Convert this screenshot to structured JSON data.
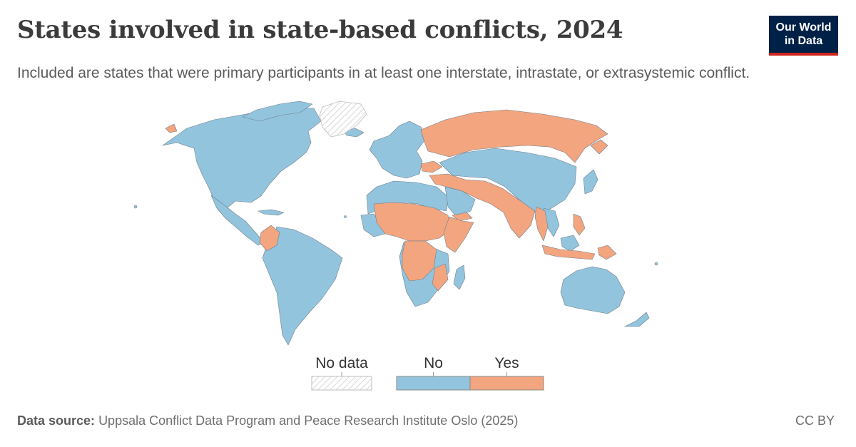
{
  "header": {
    "title": "States involved in state-based conflicts, 2024",
    "subtitle": "Included are states that were primary participants in at least one interstate, intrastate, or extrasystemic conflict."
  },
  "logo": {
    "line1": "Our World",
    "line2": "in Data"
  },
  "legend": {
    "no_data_label": "No data",
    "categories": [
      {
        "label": "No",
        "color": "#93c4de"
      },
      {
        "label": "Yes",
        "color": "#f3a57f"
      }
    ]
  },
  "map_data": {
    "type": "choropleth",
    "region": "World",
    "year": "2024",
    "colors": {
      "no": "#93c4de",
      "yes": "#f3a57f",
      "border": "#6f7f8a"
    },
    "states_yes": [
      "Russia",
      "Ukraine",
      "Israel",
      "Iran",
      "Syria",
      "Iraq",
      "Yemen",
      "Afghanistan",
      "Pakistan",
      "India",
      "Myanmar",
      "Thailand",
      "Philippines",
      "Indonesia",
      "Papua New Guinea",
      "Colombia",
      "Mali",
      "Burkina Faso",
      "Niger",
      "Nigeria",
      "Chad",
      "Cameroon",
      "Sudan",
      "South Sudan",
      "Ethiopia",
      "Somalia",
      "Kenya",
      "DR Congo",
      "Burundi",
      "Angola",
      "Mozambique",
      "Central African Republic",
      "Benin",
      "Togo"
    ]
  },
  "footer": {
    "source_label": "Data source:",
    "source_text": "Uppsala Conflict Data Program and Peace Research Institute Oslo (2025)",
    "license": "CC BY"
  }
}
